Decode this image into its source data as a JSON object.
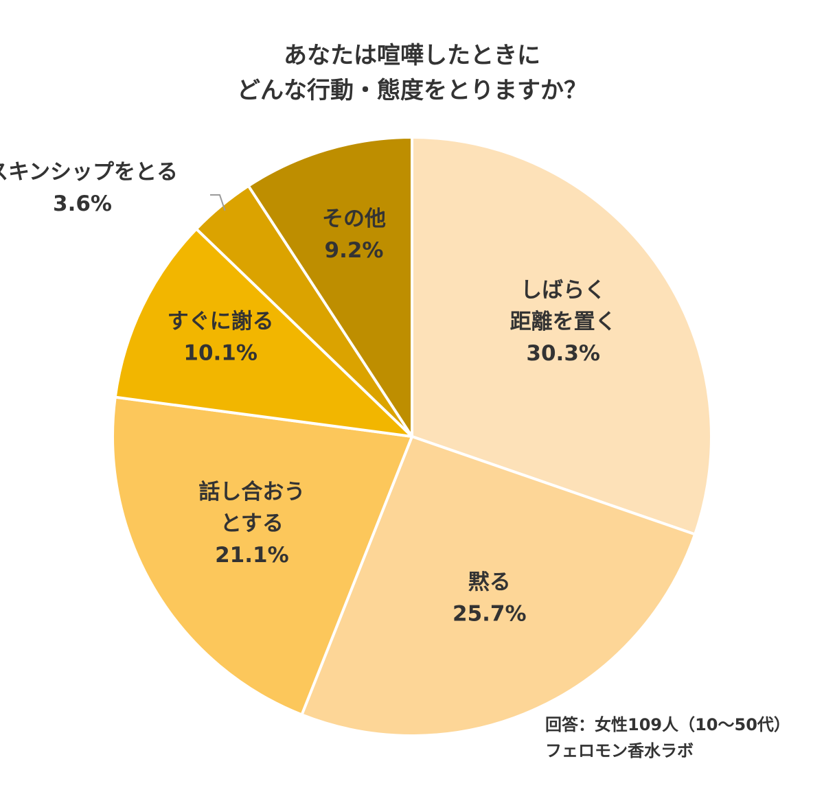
{
  "chart_data": {
    "type": "pie",
    "title": [
      "あなたは喧嘩したときに",
      "どんな行動・態度をとりますか？"
    ],
    "slices": [
      {
        "lines": [
          "しばらく",
          "距離を置く"
        ],
        "percent_label": "30.3%",
        "value": 30.3,
        "color": "#fde1b8"
      },
      {
        "lines": [
          "黙る"
        ],
        "percent_label": "25.7%",
        "value": 25.7,
        "color": "#fdd697"
      },
      {
        "lines": [
          "話し合おう",
          "とする"
        ],
        "percent_label": "21.1%",
        "value": 21.1,
        "color": "#fcc75b"
      },
      {
        "lines": [
          "すぐに謝る"
        ],
        "percent_label": "10.1%",
        "value": 10.1,
        "color": "#f2b600"
      },
      {
        "lines": [
          "スキンシップをとる"
        ],
        "percent_label": "3.6%",
        "value": 3.6,
        "color": "#dba300"
      },
      {
        "lines": [
          "その他"
        ],
        "percent_label": "9.2%",
        "value": 9.2,
        "color": "#be8e00"
      }
    ],
    "note": [
      "回答：女性109人（10～50代）",
      "フェロモン香水ラボ"
    ]
  }
}
